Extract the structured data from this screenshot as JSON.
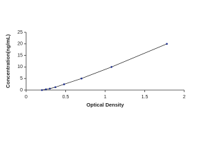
{
  "chart_data": {
    "type": "scatter",
    "x_label": "Optical Density",
    "y_label": "Concentration(ng/mL)",
    "x": [
      0.2,
      0.25,
      0.3,
      0.37,
      0.48,
      0.7,
      1.08,
      1.78
    ],
    "values": [
      0,
      0.31,
      0.63,
      1.25,
      2.5,
      5,
      10,
      20
    ],
    "color": "#1a2a8a",
    "line_color": "#111111",
    "connect": true,
    "xlim": [
      0,
      2
    ],
    "xticks": [
      0,
      0.5,
      1,
      1.5,
      2
    ],
    "ylim": [
      0,
      25
    ],
    "yticks": [
      0,
      5,
      10,
      15,
      20,
      25
    ]
  }
}
